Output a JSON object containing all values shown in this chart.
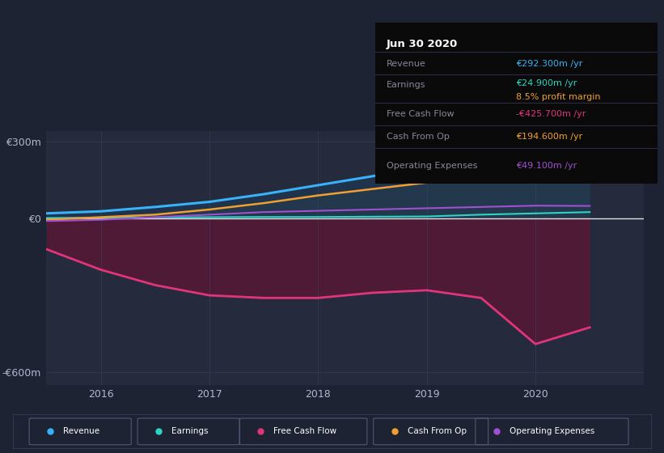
{
  "bg_color": "#1e2333",
  "plot_bg_color": "#252a3d",
  "years": [
    2015.5,
    2016.0,
    2016.5,
    2017.0,
    2017.5,
    2018.0,
    2018.5,
    2019.0,
    2019.5,
    2020.0,
    2020.5
  ],
  "revenue": [
    20,
    28,
    45,
    65,
    95,
    130,
    165,
    200,
    230,
    265,
    292
  ],
  "earnings": [
    2,
    3,
    4,
    5,
    6,
    6,
    7,
    8,
    15,
    20,
    25
  ],
  "free_cash_flow": [
    -120,
    -200,
    -260,
    -300,
    -310,
    -310,
    -290,
    -280,
    -310,
    -490,
    -425
  ],
  "cash_from_op": [
    -5,
    5,
    15,
    35,
    60,
    90,
    115,
    140,
    165,
    185,
    195
  ],
  "op_expenses": [
    -10,
    -5,
    5,
    15,
    25,
    30,
    35,
    40,
    45,
    50,
    49
  ],
  "revenue_color": "#38b2f8",
  "earnings_color": "#2cd5c4",
  "fcf_color": "#e0357a",
  "cashop_color": "#f0a030",
  "opex_color": "#a050d0",
  "zero_line_color": "#ffffff",
  "grid_color": "#3a4060",
  "info_box": {
    "date": "Jun 30 2020",
    "revenue_val": "€292.300m /yr",
    "earnings_val": "€24.900m /yr",
    "profit_margin": "8.5% profit margin",
    "fcf_val": "-€425.700m /yr",
    "cashop_val": "€194.600m /yr",
    "opex_val": "€49.100m /yr",
    "revenue_color": "#38b2f8",
    "earnings_color": "#2cd5c4",
    "fcf_color": "#e0357a",
    "cashop_color": "#f0a030",
    "opex_color": "#a050d0",
    "profit_margin_color": "#f0a030"
  },
  "ylim": [
    -650,
    340
  ],
  "xlim": [
    2015.5,
    2021.0
  ],
  "yticks": [
    -600,
    0,
    300
  ],
  "ytick_labels": [
    "-€600m",
    "€0",
    "€300m"
  ],
  "xticks": [
    2016,
    2017,
    2018,
    2019,
    2020
  ],
  "legend_items": [
    {
      "label": "Revenue",
      "color": "#38b2f8"
    },
    {
      "label": "Earnings",
      "color": "#2cd5c4"
    },
    {
      "label": "Free Cash Flow",
      "color": "#e0357a"
    },
    {
      "label": "Cash From Op",
      "color": "#f0a030"
    },
    {
      "label": "Operating Expenses",
      "color": "#a050d0"
    }
  ]
}
